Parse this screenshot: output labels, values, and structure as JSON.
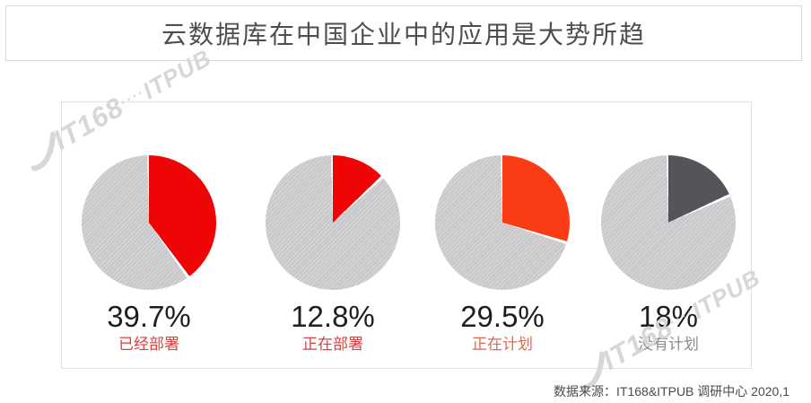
{
  "page": {
    "title": "云数据库在中国企业中的应用是大势所趋",
    "source": "数据来源：IT168&ITPUB 调研中心 2020,1"
  },
  "watermark": {
    "primary": "IT168",
    "separator": "····",
    "secondary": "ITPUB"
  },
  "colors": {
    "accent_red": "#ee0606",
    "accent_orange_red": "#fa3c16",
    "accent_dark_gray": "#54545a",
    "hatch_base": "#c8c8cb",
    "hatch_stripe": "#dadadc",
    "title_text": "#4e4e4e",
    "value_text": "#1e1e1e",
    "border": "#dcdcdc"
  },
  "chart_data": {
    "type": "pie",
    "title": "云数据库在中国企业中的应用是大势所趋",
    "unit": "%",
    "start_angle": "top",
    "direction": "clockwise",
    "remainder_style": "hatched-gray",
    "legend_position": "below-each-pie",
    "charts": [
      {
        "label": "已经部署",
        "value": 39.7,
        "display": "39.7%",
        "slice_color": "#ee0606",
        "label_color": "#d84040"
      },
      {
        "label": "正在部署",
        "value": 12.8,
        "display": "12.8%",
        "slice_color": "#ee0606",
        "label_color": "#d84040"
      },
      {
        "label": "正在计划",
        "value": 29.5,
        "display": "29.5%",
        "slice_color": "#fa3c16",
        "label_color": "#d96a50"
      },
      {
        "label": "没有计划",
        "value": 18,
        "display": "18%",
        "slice_color": "#54545a",
        "label_color": "#8d8d8d"
      }
    ]
  }
}
